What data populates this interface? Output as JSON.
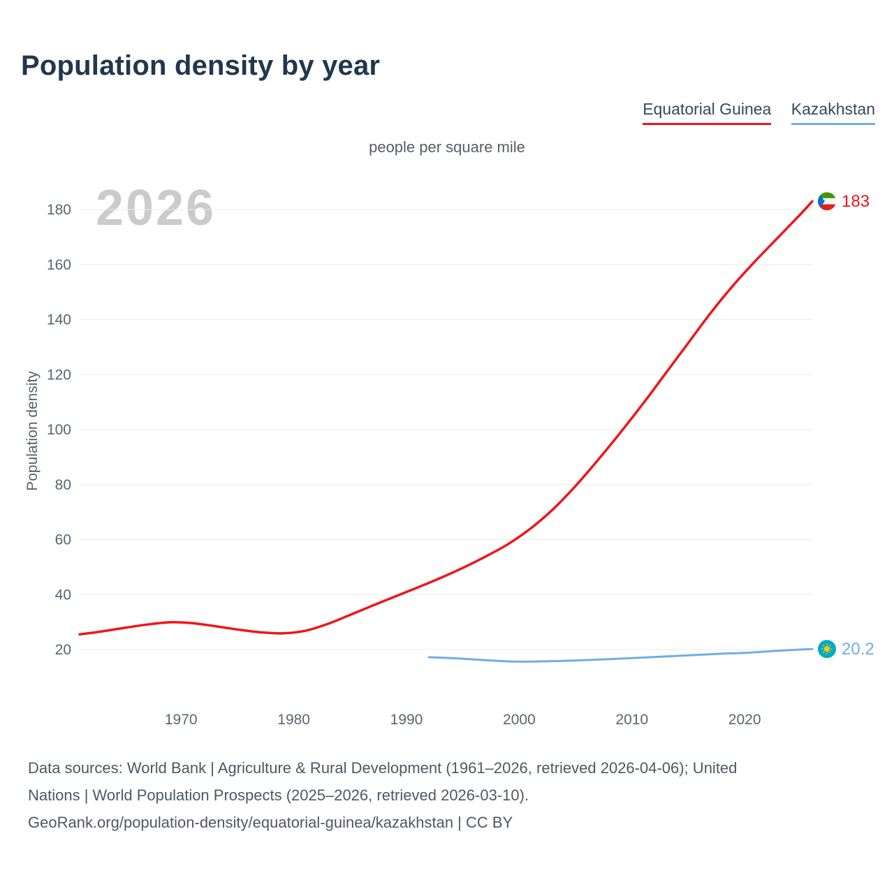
{
  "title": "Population density by year",
  "subtitle": "people per square mile",
  "watermark": "2026",
  "y_axis_label": "Population density",
  "legend": [
    {
      "label": "Equatorial Guinea",
      "color": "#ee1619"
    },
    {
      "label": "Kazakhstan",
      "color": "#72ade4"
    }
  ],
  "footer": {
    "lines": [
      "Data sources: World Bank | Agriculture & Rural Development (1961–2026, retrieved 2026-04-06); United",
      "Nations | World Population Prospects (2025–2026, retrieved 2026-03-10).",
      "GeoRank.org/population-density/equatorial-guinea/kazakhstan | CC BY"
    ]
  },
  "chart_data": {
    "type": "line",
    "title": "Population density by year",
    "subtitle": "people per square mile",
    "ylabel": "Population density",
    "xlim": [
      1961,
      2026
    ],
    "ylim": [
      0,
      190
    ],
    "x_ticks": [
      1970,
      1980,
      1990,
      2000,
      2010,
      2020
    ],
    "y_ticks": [
      20,
      40,
      60,
      80,
      100,
      120,
      140,
      160,
      180
    ],
    "grid": "horizontal",
    "legend_position": "top-right",
    "series": [
      {
        "name": "Equatorial Guinea",
        "color": "#ee1619",
        "icon": "equatorial-guinea-flag-icon",
        "end_label": "183",
        "x": [
          1961,
          1963,
          1965,
          1967,
          1969,
          1971,
          1973,
          1975,
          1977,
          1979,
          1981,
          1983,
          1985,
          1987,
          1989,
          1991,
          1993,
          1995,
          1997,
          1999,
          2001,
          2003,
          2005,
          2007,
          2009,
          2011,
          2013,
          2015,
          2017,
          2019,
          2021,
          2023,
          2025,
          2026
        ],
        "values": [
          25.5,
          26.6,
          27.9,
          29.1,
          29.9,
          29.6,
          28.5,
          27.3,
          26.3,
          25.9,
          26.8,
          29.3,
          32.6,
          36.0,
          39.3,
          42.6,
          46.0,
          49.7,
          53.8,
          58.3,
          64.0,
          71.0,
          79.5,
          89.0,
          99.0,
          109.5,
          120.5,
          131.5,
          142.5,
          152.5,
          161.5,
          170.0,
          178.5,
          183.0
        ]
      },
      {
        "name": "Kazakhstan",
        "color": "#72ade4",
        "icon": "kazakhstan-flag-icon",
        "end_label": "20.2",
        "x": [
          1992,
          1994,
          1996,
          1998,
          2000,
          2002,
          2004,
          2006,
          2008,
          2010,
          2012,
          2014,
          2016,
          2018,
          2020,
          2022,
          2024,
          2026
        ],
        "values": [
          17.2,
          16.9,
          16.4,
          15.9,
          15.6,
          15.7,
          15.9,
          16.2,
          16.5,
          16.9,
          17.3,
          17.7,
          18.1,
          18.5,
          18.8,
          19.3,
          19.8,
          20.2
        ]
      }
    ]
  }
}
